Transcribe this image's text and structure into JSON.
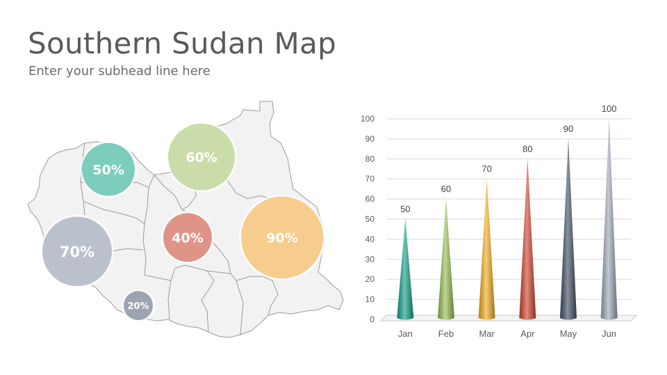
{
  "header": {
    "title": "Southern Sudan Map",
    "subtitle": "Enter your subhead line here"
  },
  "map": {
    "bubbles": [
      {
        "label": "50%",
        "color": "#5cc2ad"
      },
      {
        "label": "60%",
        "color": "#b9d18e"
      },
      {
        "label": "70%",
        "color": "#a6acbd"
      },
      {
        "label": "40%",
        "color": "#d97b6c"
      },
      {
        "label": "90%",
        "color": "#f5c06e"
      },
      {
        "label": "20%",
        "color": "#8c93a1"
      }
    ]
  },
  "chart_data": {
    "type": "bar",
    "categories": [
      "Jan",
      "Feb",
      "Mar",
      "Apr",
      "May",
      "Jun"
    ],
    "values": [
      50,
      60,
      70,
      80,
      90,
      100
    ],
    "data_labels": [
      "50",
      "60",
      "70",
      "80",
      "90",
      "100"
    ],
    "yticks": [
      "0",
      "10",
      "20",
      "30",
      "40",
      "50",
      "60",
      "70",
      "80",
      "90",
      "100"
    ],
    "ylim": [
      0,
      100
    ],
    "grid": true,
    "colors": [
      "#1aa58d",
      "#9cc15a",
      "#f5b126",
      "#d44b35",
      "#47566b",
      "#a3abbd"
    ]
  }
}
